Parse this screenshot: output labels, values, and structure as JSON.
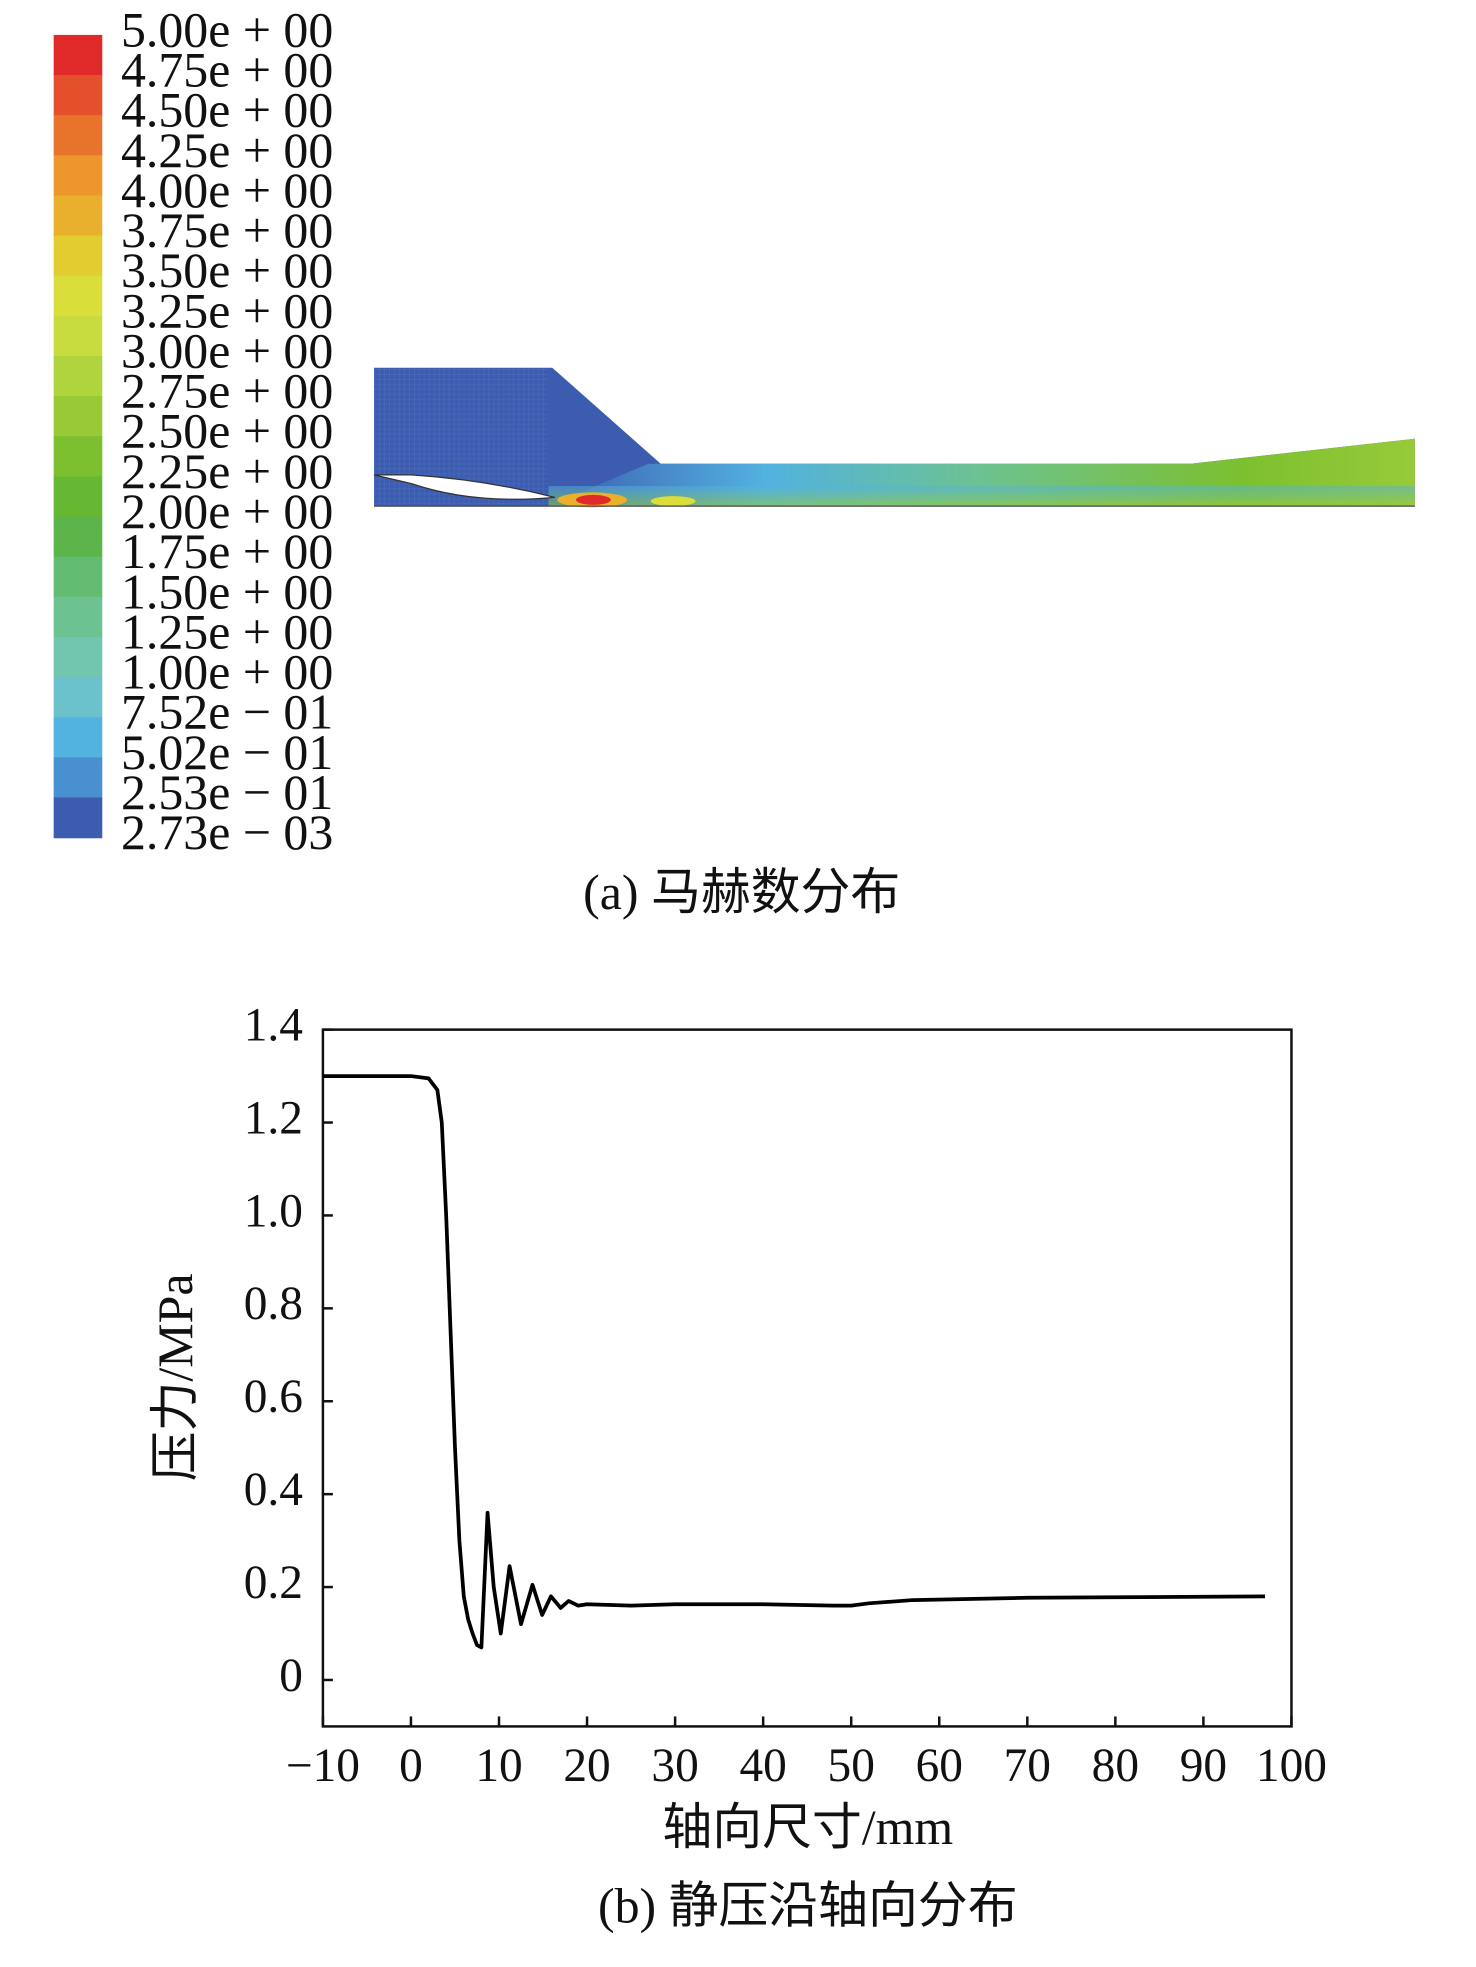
{
  "chart_data": [
    {
      "type": "contour",
      "caption": "(a) 马赫数分布",
      "colorbar": {
        "ticks": [
          {
            "value": 5,
            "label": "5.00e + 00"
          },
          {
            "value": 4.75,
            "label": "4.75e + 00"
          },
          {
            "value": 4.5,
            "label": "4.50e + 00"
          },
          {
            "value": 4.25,
            "label": "4.25e + 00"
          },
          {
            "value": 4,
            "label": "4.00e + 00"
          },
          {
            "value": 3.75,
            "label": "3.75e + 00"
          },
          {
            "value": 3.5,
            "label": "3.50e + 00"
          },
          {
            "value": 3.25,
            "label": "3.25e + 00"
          },
          {
            "value": 3,
            "label": "3.00e + 00"
          },
          {
            "value": 2.75,
            "label": "2.75e + 00"
          },
          {
            "value": 2.5,
            "label": "2.50e + 00"
          },
          {
            "value": 2.25,
            "label": "2.25e + 00"
          },
          {
            "value": 2,
            "label": "2.00e + 00"
          },
          {
            "value": 1.75,
            "label": "1.75e + 00"
          },
          {
            "value": 1.5,
            "label": "1.50e + 00"
          },
          {
            "value": 1.25,
            "label": "1.25e + 00"
          },
          {
            "value": 1,
            "label": "1.00e + 00"
          },
          {
            "value": 0.752,
            "label": "7.52e − 01"
          },
          {
            "value": 0.502,
            "label": "5.02e − 01"
          },
          {
            "value": 0.253,
            "label": "2.53e − 01"
          },
          {
            "value": 0.00273,
            "label": "2.73e − 03"
          }
        ],
        "colors": [
          "#e02a2a",
          "#e4502c",
          "#e8742c",
          "#ec962c",
          "#e8b02c",
          "#e2cc30",
          "#dade3a",
          "#c8dc40",
          "#b0d43e",
          "#98ca38",
          "#7cc030",
          "#66b832",
          "#5cb44a",
          "#64bc72",
          "#6cc290",
          "#72c6b0",
          "#6cc2cc",
          "#52b2e0",
          "#4890d0",
          "#3c5cb0"
        ]
      }
    },
    {
      "type": "line",
      "caption": "(b) 静压沿轴向分布",
      "xlabel": "轴向尺寸/mm",
      "ylabel": "压力/MPa",
      "xlim": [
        -10,
        100
      ],
      "ylim": [
        -0.1,
        1.4
      ],
      "xticks": [
        {
          "value": -10,
          "label": "−10"
        },
        0,
        10,
        20,
        30,
        40,
        50,
        60,
        70,
        80,
        90,
        100
      ],
      "yticks": [
        0,
        0.2,
        0.4,
        0.6,
        0.8,
        {
          "value": 1,
          "label": "1.0"
        },
        1.2,
        1.4
      ],
      "color": "#000000",
      "x": [
        -10,
        0,
        2,
        3,
        3.5,
        4,
        4.5,
        5,
        5.5,
        6,
        6.5,
        7,
        7.5,
        8,
        8.7,
        9.4,
        10.2,
        11.2,
        12.5,
        13.8,
        14.9,
        15.9,
        17,
        17.9,
        19,
        20,
        25,
        30,
        40,
        48,
        50,
        52,
        57,
        70,
        80,
        97
      ],
      "values": [
        1.3,
        1.3,
        1.295,
        1.27,
        1.2,
        1.0,
        0.75,
        0.5,
        0.3,
        0.18,
        0.13,
        0.1,
        0.075,
        0.07,
        0.36,
        0.2,
        0.1,
        0.245,
        0.12,
        0.205,
        0.14,
        0.18,
        0.155,
        0.17,
        0.16,
        0.163,
        0.16,
        0.163,
        0.163,
        0.16,
        0.16,
        0.165,
        0.172,
        0.177,
        0.178,
        0.18
      ]
    }
  ]
}
